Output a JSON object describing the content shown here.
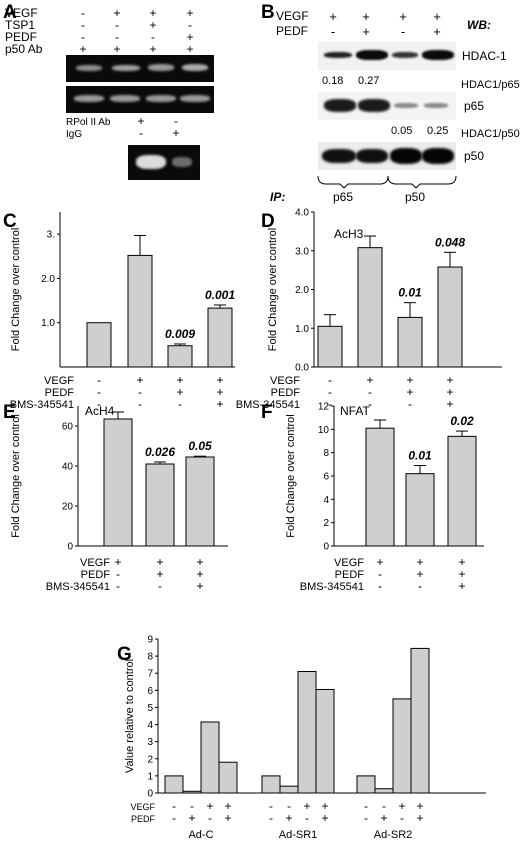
{
  "panels": {
    "A": {
      "label": "A",
      "rows": [
        {
          "name": "VEGF",
          "signs": [
            "-",
            "+",
            "+",
            "+"
          ]
        },
        {
          "name": "TSP1",
          "signs": [
            "-",
            "-",
            "+",
            "-"
          ]
        },
        {
          "name": "PEDF",
          "signs": [
            "-",
            "-",
            "-",
            "+"
          ]
        },
        {
          "name": "p50 Ab",
          "signs": [
            "+",
            "+",
            "+",
            "+"
          ]
        }
      ],
      "control_rows": [
        {
          "name": "RPol II Ab",
          "signs": [
            "+",
            "-"
          ]
        },
        {
          "name": "IgG",
          "signs": [
            "-",
            "+"
          ]
        }
      ]
    },
    "B": {
      "label": "B",
      "vegf_label": "VEGF",
      "pedf_label": "PEDF",
      "vegf_signs": [
        "+",
        "+",
        "+",
        "+"
      ],
      "pedf_signs": [
        "-",
        "+",
        "-",
        "+"
      ],
      "wb_label": "WB:",
      "blots": [
        "HDAC-1",
        "p65",
        "p50"
      ],
      "ratio_p65_label": "HDAC1/p65",
      "ratio_p65_values": [
        "0.18",
        "0.27"
      ],
      "ratio_p50_label": "HDAC1/p50",
      "ratio_p50_values": [
        "0.05",
        "0.25"
      ],
      "ip_label": "IP:",
      "ip_groups": [
        "p65",
        "p50"
      ]
    }
  },
  "chart_data": [
    {
      "panel": "C",
      "type": "bar",
      "title": "",
      "ylabel": "Fold Change over control",
      "ylim": [
        0,
        3.5
      ],
      "yticks": [
        "1.0",
        "2.0",
        "3."
      ],
      "ytick_values": [
        1,
        2,
        3
      ],
      "values": [
        1.0,
        2.52,
        0.48,
        1.33
      ],
      "errors": [
        0,
        0.45,
        0.04,
        0.07
      ],
      "annotations": [
        "",
        "",
        "0.009",
        "0.001"
      ],
      "conditions": [
        {
          "name": "VEGF",
          "signs": [
            "-",
            "+",
            "+",
            "+"
          ]
        },
        {
          "name": "PEDF",
          "signs": [
            "-",
            "-",
            "+",
            "+"
          ]
        },
        {
          "name": "BMS-345541",
          "signs": [
            "-",
            "-",
            "-",
            "+"
          ]
        }
      ]
    },
    {
      "panel": "D",
      "type": "bar",
      "title": "AcH3",
      "ylabel": "Fold Change over control",
      "ylim": [
        0,
        4.0
      ],
      "yticks": [
        "0.0",
        "1.0",
        "2.0",
        "3.0",
        "4.0"
      ],
      "ytick_values": [
        0,
        1,
        2,
        3,
        4
      ],
      "values": [
        1.05,
        3.08,
        1.28,
        2.58
      ],
      "errors": [
        0.3,
        0.3,
        0.38,
        0.38
      ],
      "annotations": [
        "",
        "",
        "0.01",
        "0.048"
      ],
      "conditions": [
        {
          "name": "VEGF",
          "signs": [
            "-",
            "+",
            "+",
            "+"
          ]
        },
        {
          "name": "PEDF",
          "signs": [
            "-",
            "-",
            "+",
            "+"
          ]
        },
        {
          "name": "BMS-345541",
          "signs": [
            "-",
            "-",
            "-",
            "+"
          ]
        }
      ]
    },
    {
      "panel": "E",
      "type": "bar",
      "title": "AcH4",
      "ylabel": "Fold Change over control",
      "ylim": [
        0,
        70
      ],
      "yticks": [
        "0",
        "20",
        "40",
        "60"
      ],
      "ytick_values": [
        0,
        20,
        40,
        60
      ],
      "values": [
        63.5,
        41,
        44.5
      ],
      "errors": [
        3.5,
        1.0,
        0.4
      ],
      "annotations": [
        "",
        "0.026",
        "0.05"
      ],
      "conditions": [
        {
          "name": "VEGF",
          "signs": [
            "+",
            "+",
            "+"
          ]
        },
        {
          "name": "PEDF",
          "signs": [
            "-",
            "+",
            "+"
          ]
        },
        {
          "name": "BMS-345541",
          "signs": [
            "-",
            "-",
            "+"
          ]
        }
      ]
    },
    {
      "panel": "F",
      "type": "bar",
      "title": "NFAT",
      "ylabel": "Fold Change over control",
      "ylim": [
        0,
        12
      ],
      "yticks": [
        "0",
        "2",
        "4",
        "6",
        "8",
        "10",
        "12"
      ],
      "ytick_values": [
        0,
        2,
        4,
        6,
        8,
        10,
        12
      ],
      "values": [
        10.1,
        6.2,
        9.4
      ],
      "errors": [
        0.7,
        0.7,
        0.45
      ],
      "annotations": [
        "",
        "0.01",
        "0.02"
      ],
      "conditions": [
        {
          "name": "VEGF",
          "signs": [
            "+",
            "+",
            "+"
          ]
        },
        {
          "name": "PEDF",
          "signs": [
            "-",
            "+",
            "+"
          ]
        },
        {
          "name": "BMS-345541",
          "signs": [
            "-",
            "-",
            "+"
          ]
        }
      ]
    },
    {
      "panel": "G",
      "type": "bar",
      "title": "",
      "ylabel": "Value relative to control",
      "ylim": [
        0,
        9
      ],
      "yticks": [
        "0",
        "1",
        "2",
        "3",
        "4",
        "5",
        "6",
        "7",
        "8",
        "9"
      ],
      "ytick_values": [
        0,
        1,
        2,
        3,
        4,
        5,
        6,
        7,
        8,
        9
      ],
      "groups": [
        {
          "name": "Ad-C",
          "values": [
            1.0,
            0.1,
            4.15,
            1.8
          ]
        },
        {
          "name": "Ad-SR1",
          "values": [
            1.0,
            0.4,
            7.1,
            6.05
          ]
        },
        {
          "name": "Ad-SR2",
          "values": [
            1.0,
            0.25,
            5.5,
            8.45
          ]
        }
      ],
      "conditions": [
        {
          "name": "VEGF",
          "signs": [
            "-",
            "-",
            "+",
            "+"
          ]
        },
        {
          "name": "PEDF",
          "signs": [
            "-",
            "+",
            "-",
            "+"
          ]
        }
      ]
    }
  ]
}
